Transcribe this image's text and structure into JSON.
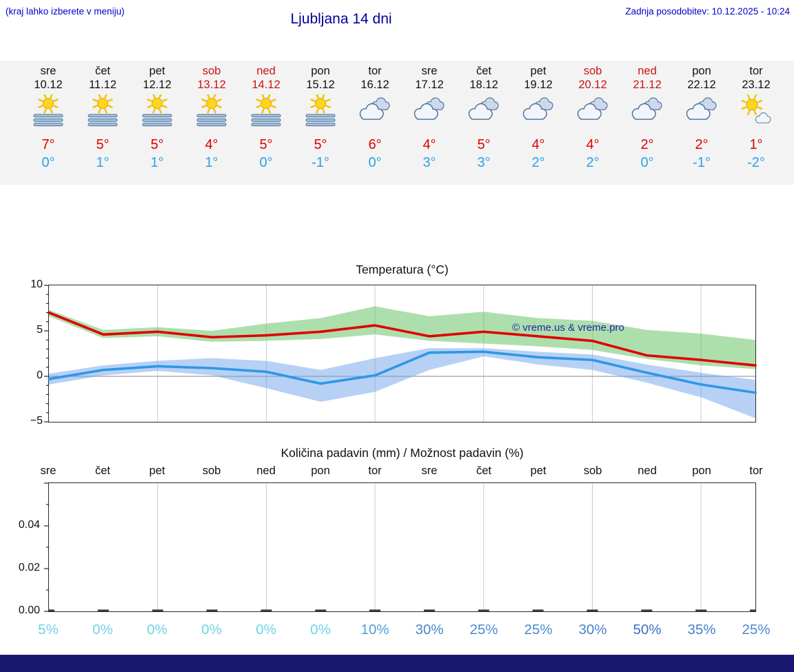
{
  "header": {
    "hint": "(kraj lahko izberete v meniju)",
    "title": "Ljubljana 14 dni",
    "updated": "Zadnja posodobitev: 10.12.2025 - 10:24"
  },
  "forecast": {
    "days": [
      {
        "name": "sre",
        "date": "10.12",
        "weekend": false,
        "icon": "sun-fog",
        "high": "7°",
        "low": "0°"
      },
      {
        "name": "čet",
        "date": "11.12",
        "weekend": false,
        "icon": "sun-fog",
        "high": "5°",
        "low": "1°"
      },
      {
        "name": "pet",
        "date": "12.12",
        "weekend": false,
        "icon": "sun-fog",
        "high": "5°",
        "low": "1°"
      },
      {
        "name": "sob",
        "date": "13.12",
        "weekend": true,
        "icon": "sun-fog",
        "high": "4°",
        "low": "1°"
      },
      {
        "name": "ned",
        "date": "14.12",
        "weekend": true,
        "icon": "sun-fog",
        "high": "5°",
        "low": "0°"
      },
      {
        "name": "pon",
        "date": "15.12",
        "weekend": false,
        "icon": "sun-fog",
        "high": "5°",
        "low": "-1°"
      },
      {
        "name": "tor",
        "date": "16.12",
        "weekend": false,
        "icon": "clouds",
        "high": "6°",
        "low": "0°"
      },
      {
        "name": "sre",
        "date": "17.12",
        "weekend": false,
        "icon": "clouds",
        "high": "4°",
        "low": "3°"
      },
      {
        "name": "čet",
        "date": "18.12",
        "weekend": false,
        "icon": "clouds",
        "high": "5°",
        "low": "3°"
      },
      {
        "name": "pet",
        "date": "19.12",
        "weekend": false,
        "icon": "clouds",
        "high": "4°",
        "low": "2°"
      },
      {
        "name": "sob",
        "date": "20.12",
        "weekend": true,
        "icon": "clouds",
        "high": "4°",
        "low": "2°"
      },
      {
        "name": "ned",
        "date": "21.12",
        "weekend": true,
        "icon": "clouds",
        "high": "2°",
        "low": "0°"
      },
      {
        "name": "pon",
        "date": "22.12",
        "weekend": false,
        "icon": "clouds",
        "high": "2°",
        "low": "-1°"
      },
      {
        "name": "tor",
        "date": "23.12",
        "weekend": false,
        "icon": "sun-cloud",
        "high": "1°",
        "low": "-2°"
      }
    ]
  },
  "chart_data": [
    {
      "type": "line",
      "title": "Temperatura (°C)",
      "categories": [
        "10.12",
        "11.12",
        "12.12",
        "13.12",
        "14.12",
        "15.12",
        "16.12",
        "17.12",
        "18.12",
        "19.12",
        "20.12",
        "21.12",
        "22.12",
        "23.12"
      ],
      "ylim": [
        -5,
        10
      ],
      "yticks": [
        {
          "v": 10,
          "label": "10"
        },
        {
          "v": 5,
          "label": "5"
        },
        {
          "v": 0,
          "label": "0"
        },
        {
          "v": -5,
          "label": "−5"
        }
      ],
      "grid": {
        "vertical_every_n_days": 2,
        "zero_line": true
      },
      "watermark": "© vreme.us & vreme.pro",
      "bands": [
        {
          "name": "max-temp-range",
          "color": "rgba(92,191,92,0.5)",
          "upper": [
            7.3,
            5.1,
            5.4,
            5.0,
            5.8,
            6.4,
            7.7,
            6.6,
            7.1,
            6.4,
            6.1,
            5.1,
            4.7,
            4.0
          ],
          "lower": [
            6.6,
            4.2,
            4.4,
            3.8,
            3.9,
            4.1,
            4.6,
            3.9,
            3.6,
            3.3,
            2.9,
            1.9,
            1.2,
            0.8
          ]
        },
        {
          "name": "min-temp-range",
          "color": "rgba(96,152,232,0.45)",
          "upper": [
            0.3,
            1.2,
            1.7,
            2.0,
            1.7,
            0.7,
            2.0,
            3.1,
            3.1,
            2.7,
            2.4,
            1.3,
            0.4,
            -0.4
          ],
          "lower": [
            -0.9,
            0.1,
            0.6,
            0.1,
            -1.3,
            -2.8,
            -1.7,
            0.7,
            2.2,
            1.3,
            0.7,
            -0.7,
            -2.3,
            -4.6
          ]
        }
      ],
      "series": [
        {
          "name": "max-temp",
          "color": "#e00000",
          "values": [
            7.0,
            4.6,
            4.9,
            4.3,
            4.5,
            4.9,
            5.6,
            4.4,
            4.9,
            4.4,
            3.9,
            2.3,
            1.8,
            1.2
          ]
        },
        {
          "name": "min-temp",
          "color": "#2f97e6",
          "values": [
            -0.3,
            0.7,
            1.1,
            0.9,
            0.5,
            -0.8,
            0.1,
            2.6,
            2.7,
            2.1,
            1.8,
            0.4,
            -0.9,
            -1.8
          ]
        }
      ]
    },
    {
      "type": "bar",
      "title": "Količina padavin (mm) / Možnost padavin (%)",
      "categories": [
        "sre",
        "čet",
        "pet",
        "sob",
        "ned",
        "pon",
        "tor",
        "sre",
        "čet",
        "pet",
        "sob",
        "ned",
        "pon",
        "tor"
      ],
      "values": [
        0,
        0,
        0,
        0,
        0,
        0,
        0,
        0,
        0,
        0,
        0,
        0,
        0,
        0
      ],
      "ylim": [
        0,
        0.06
      ],
      "yticks": [
        {
          "v": 0.04,
          "label": "0.04"
        },
        {
          "v": 0.02,
          "label": "0.02"
        },
        {
          "v": 0,
          "label": "0.00"
        }
      ],
      "probability": [
        {
          "text": "5%",
          "color": "#6fd3e3"
        },
        {
          "text": "0%",
          "color": "#6fd3e3"
        },
        {
          "text": "0%",
          "color": "#6fd3e3"
        },
        {
          "text": "0%",
          "color": "#6fd3e3"
        },
        {
          "text": "0%",
          "color": "#6fd3e3"
        },
        {
          "text": "0%",
          "color": "#6fd3e3"
        },
        {
          "text": "10%",
          "color": "#52a0d8"
        },
        {
          "text": "30%",
          "color": "#4a84ce"
        },
        {
          "text": "25%",
          "color": "#4e8ad1"
        },
        {
          "text": "25%",
          "color": "#4e8ad1"
        },
        {
          "text": "30%",
          "color": "#4a84ce"
        },
        {
          "text": "50%",
          "color": "#3c6fc2"
        },
        {
          "text": "35%",
          "color": "#477fcb"
        },
        {
          "text": "25%",
          "color": "#4e8ad1"
        }
      ]
    }
  ],
  "colors": {
    "high_temp": "#dd0000",
    "low_temp": "#2e9fe6",
    "weekend_red": "#cc1111",
    "header_blue": "#0000cc",
    "title_blue": "#000099",
    "footer_bar": "#17176f"
  }
}
